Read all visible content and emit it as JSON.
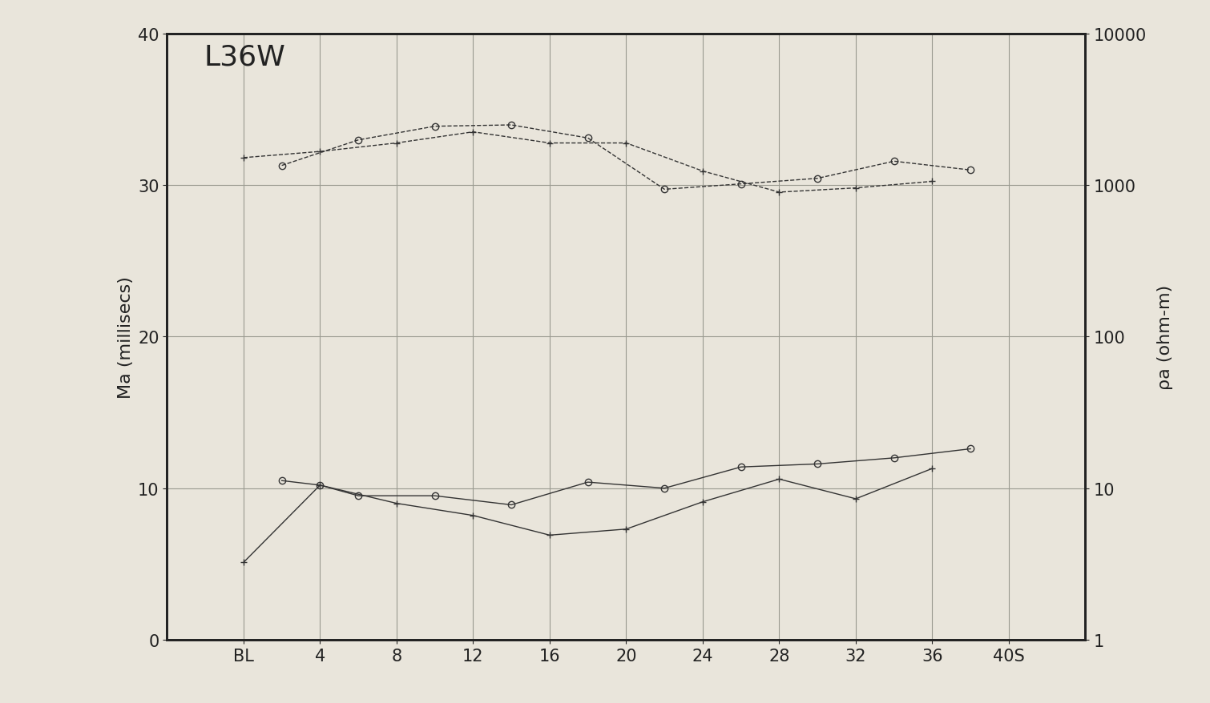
{
  "chart_data": {
    "type": "line",
    "title": "L36W",
    "ylabel": "Ma (millisecs)",
    "y2label": "ρa (ohm-m)",
    "xlim": [
      -4,
      44
    ],
    "xticks": [
      {
        "value": 0,
        "label": "BL"
      },
      4,
      8,
      12,
      16,
      20,
      24,
      28,
      32,
      36,
      {
        "value": 40,
        "label": "40S"
      }
    ],
    "ylim": [
      0,
      40
    ],
    "yticks": [
      0,
      10,
      20,
      30,
      40
    ],
    "y2lim": [
      1,
      10000
    ],
    "y2ticks": [
      1,
      10,
      100,
      1000,
      10000
    ],
    "log": "y2",
    "grid": true,
    "series": [
      {
        "axis": "y2",
        "color": "#333333",
        "marker": "circle",
        "line_style": "dashed",
        "x": [
          2,
          6,
          10,
          14,
          18,
          22,
          26,
          30,
          34,
          38
        ],
        "values": [
          1350,
          1990,
          2450,
          2500,
          2050,
          940,
          1020,
          1110,
          1440,
          1260
        ]
      },
      {
        "axis": "y2",
        "color": "#333333",
        "marker": "plus",
        "line_style": "dashed",
        "x": [
          0,
          4,
          8,
          12,
          16,
          20,
          24,
          28,
          32,
          36
        ],
        "values": [
          1520,
          1670,
          1900,
          2250,
          1900,
          1900,
          1240,
          900,
          960,
          1060
        ]
      },
      {
        "axis": "y",
        "color": "#333333",
        "marker": "circle",
        "line_style": "solid",
        "x": [
          2,
          4,
          6,
          10,
          14,
          18,
          22,
          26,
          30,
          34,
          38
        ],
        "values": [
          10.5,
          10.2,
          9.5,
          9.5,
          8.9,
          10.4,
          10.0,
          11.4,
          11.6,
          12.0,
          12.6
        ]
      },
      {
        "axis": "y",
        "color": "#333333",
        "marker": "plus",
        "line_style": "solid",
        "x": [
          0,
          4,
          8,
          12,
          16,
          20,
          24,
          28,
          32,
          36
        ],
        "values": [
          5.1,
          10.2,
          9.0,
          8.2,
          6.9,
          7.3,
          9.1,
          10.6,
          9.3,
          11.3
        ]
      }
    ]
  }
}
